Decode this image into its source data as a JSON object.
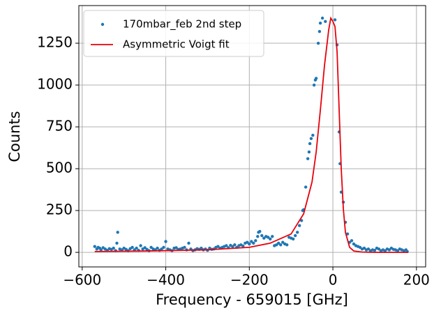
{
  "chart_data": {
    "type": "scatter_line",
    "xlabel": "Frequency - 659015 [GHz]",
    "ylabel": "Counts",
    "xlim": [
      -608,
      222
    ],
    "ylim": [
      -87,
      1475
    ],
    "xticks": [
      {
        "value": -600,
        "label": "−600"
      },
      {
        "value": -400,
        "label": "−400"
      },
      {
        "value": -200,
        "label": "−200"
      },
      0,
      200
    ],
    "yticks": [
      0,
      250,
      500,
      750,
      1000,
      1250
    ],
    "grid": true,
    "legend": "upper left",
    "series": [
      {
        "name": "170mbar_feb 2nd step",
        "kind": "scatter",
        "color": "#1f77b4",
        "x": [
          -570,
          -565,
          -562,
          -558,
          -555,
          -550,
          -545,
          -540,
          -535,
          -530,
          -525,
          -520,
          -517,
          -515,
          -510,
          -505,
          -500,
          -495,
          -490,
          -485,
          -480,
          -475,
          -470,
          -465,
          -460,
          -455,
          -450,
          -445,
          -440,
          -435,
          -430,
          -425,
          -420,
          -415,
          -410,
          -405,
          -400,
          -395,
          -390,
          -385,
          -380,
          -375,
          -370,
          -365,
          -360,
          -355,
          -350,
          -345,
          -340,
          -335,
          -330,
          -325,
          -320,
          -315,
          -310,
          -305,
          -300,
          -295,
          -290,
          -285,
          -280,
          -275,
          -270,
          -265,
          -260,
          -255,
          -250,
          -245,
          -240,
          -235,
          -230,
          -225,
          -220,
          -215,
          -210,
          -205,
          -200,
          -195,
          -190,
          -185,
          -180,
          -178,
          -175,
          -170,
          -165,
          -160,
          -155,
          -150,
          -145,
          -140,
          -135,
          -130,
          -125,
          -120,
          -115,
          -110,
          -105,
          -100,
          -95,
          -90,
          -85,
          -80,
          -75,
          -72,
          -70,
          -65,
          -60,
          -57,
          -55,
          -52,
          -48,
          -45,
          -42,
          -40,
          -35,
          -32,
          -30,
          -25,
          -18,
          5,
          10,
          15,
          17,
          20,
          25,
          30,
          35,
          40,
          45,
          50,
          55,
          60,
          65,
          70,
          75,
          80,
          85,
          90,
          95,
          100,
          105,
          110,
          115,
          120,
          125,
          130,
          135,
          140,
          145,
          150,
          155,
          160,
          165,
          170,
          175,
          178
        ],
        "values": [
          35,
          20,
          30,
          25,
          15,
          28,
          20,
          12,
          22,
          18,
          25,
          10,
          55,
          120,
          20,
          15,
          25,
          18,
          10,
          22,
          30,
          15,
          25,
          12,
          40,
          20,
          28,
          18,
          10,
          30,
          20,
          15,
          25,
          12,
          20,
          30,
          65,
          20,
          15,
          10,
          25,
          28,
          18,
          20,
          25,
          30,
          15,
          55,
          20,
          10,
          15,
          22,
          18,
          25,
          15,
          20,
          12,
          25,
          18,
          20,
          30,
          35,
          25,
          30,
          35,
          40,
          28,
          42,
          35,
          45,
          30,
          40,
          45,
          38,
          55,
          60,
          50,
          65,
          55,
          70,
          95,
          120,
          125,
          100,
          85,
          95,
          90,
          80,
          95,
          40,
          45,
          55,
          45,
          60,
          50,
          45,
          90,
          85,
          80,
          100,
          120,
          160,
          190,
          250,
          255,
          390,
          560,
          600,
          650,
          680,
          700,
          1000,
          1030,
          1040,
          1250,
          1320,
          1370,
          1400,
          1380,
          1390,
          1240,
          720,
          530,
          360,
          300,
          180,
          110,
          60,
          70,
          50,
          40,
          35,
          30,
          20,
          25,
          15,
          20,
          10,
          15,
          12,
          25,
          20,
          10,
          15,
          10,
          20,
          15,
          25,
          18,
          15,
          10,
          20,
          15,
          10,
          15,
          5
        ]
      },
      {
        "name": "Asymmetric Voigt fit",
        "kind": "line",
        "color": "#e8000b",
        "x": [
          -570,
          -450,
          -300,
          -200,
          -150,
          -100,
          -70,
          -50,
          -40,
          -30,
          -20,
          -10,
          -5,
          0,
          5,
          10,
          15,
          20,
          25,
          30,
          40,
          50,
          70,
          100,
          180
        ],
        "values": [
          5,
          8,
          15,
          30,
          55,
          110,
          230,
          420,
          600,
          850,
          1120,
          1330,
          1400,
          1380,
          1350,
          1200,
          850,
          500,
          260,
          120,
          30,
          8,
          2,
          0,
          0
        ]
      }
    ]
  }
}
